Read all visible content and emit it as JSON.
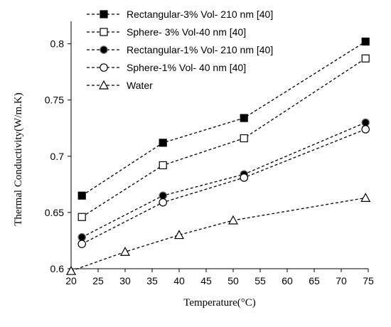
{
  "chart_data": {
    "type": "line",
    "xlabel": "Temperature(°C)",
    "ylabel": "Thermal Conductivity(W/m.K)",
    "xlim": [
      20,
      75
    ],
    "ylim": [
      0.6,
      0.82
    ],
    "x_ticks": [
      20,
      25,
      30,
      35,
      40,
      45,
      50,
      55,
      60,
      65,
      70,
      75
    ],
    "y_ticks": [
      0.6,
      0.65,
      0.7,
      0.75,
      0.8
    ],
    "y_tick_labels": [
      "0.6",
      "0.65",
      "0.7",
      "0.75",
      "0.8"
    ],
    "grid": false,
    "legend_position": "top-left",
    "series": [
      {
        "name": "Rectangular-3% Vol- 210 nm [40]",
        "marker": "square-filled",
        "color": "#000000",
        "points": [
          [
            22,
            0.665
          ],
          [
            37,
            0.712
          ],
          [
            52,
            0.734
          ],
          [
            74.5,
            0.802
          ]
        ]
      },
      {
        "name": "Sphere- 3% Vol-40 nm [40]",
        "marker": "square-open",
        "color": "#000000",
        "points": [
          [
            22,
            0.646
          ],
          [
            37,
            0.692
          ],
          [
            52,
            0.716
          ],
          [
            74.5,
            0.787
          ]
        ]
      },
      {
        "name": "Rectangular-1% Vol- 210 nm [40]",
        "marker": "circle-filled",
        "color": "#000000",
        "points": [
          [
            22,
            0.628
          ],
          [
            37,
            0.665
          ],
          [
            52,
            0.684
          ],
          [
            74.5,
            0.73
          ]
        ]
      },
      {
        "name": "Sphere-1% Vol- 40 nm [40]",
        "marker": "circle-open",
        "color": "#000000",
        "points": [
          [
            22,
            0.622
          ],
          [
            37,
            0.659
          ],
          [
            52,
            0.681
          ],
          [
            74.5,
            0.724
          ]
        ]
      },
      {
        "name": "Water",
        "marker": "triangle-open",
        "color": "#000000",
        "points": [
          [
            20,
            0.598
          ],
          [
            30,
            0.615
          ],
          [
            40,
            0.63
          ],
          [
            50,
            0.643
          ],
          [
            74.5,
            0.663
          ]
        ]
      }
    ]
  }
}
